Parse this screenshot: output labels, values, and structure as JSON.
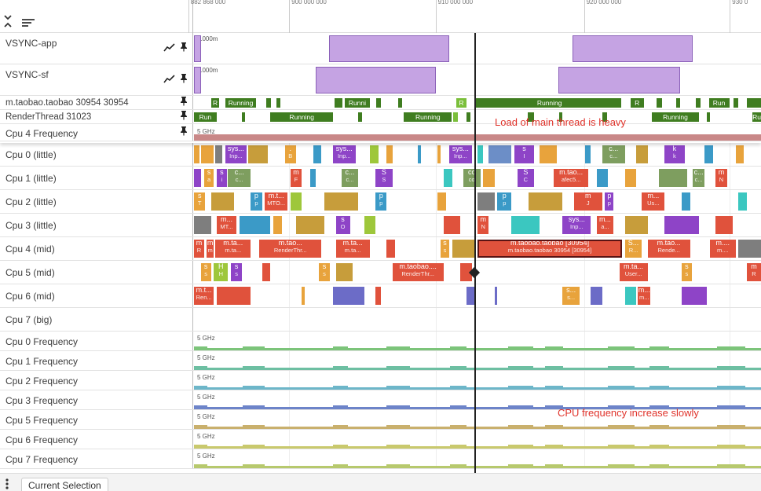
{
  "axis": {
    "ticks": [
      {
        "label": "882 868 000",
        "frac": -0.01
      },
      {
        "label": "900 000 000",
        "frac": 0.168
      },
      {
        "label": "910 000 000",
        "frac": 0.426
      },
      {
        "label": "920 000 000",
        "frac": 0.688
      },
      {
        "label": "930 0",
        "frac": 0.945
      }
    ]
  },
  "header": {
    "collapse_icon": "collapse-all-icon",
    "sort_icon": "list-icon"
  },
  "pinned_rows": [
    {
      "id": "vsync-app",
      "name": "VSYNC-app",
      "kind": "vsync",
      "scale_label": "1000m",
      "has_chart_icon": true,
      "pulses": [
        [
          0,
          0.012
        ],
        [
          0.238,
          0.45
        ],
        [
          0.668,
          0.88
        ]
      ]
    },
    {
      "id": "vsync-sf",
      "name": "VSYNC-sf",
      "kind": "vsync",
      "scale_label": "1000m",
      "has_chart_icon": true,
      "pulses": [
        [
          0,
          0.012
        ],
        [
          0.214,
          0.427
        ],
        [
          0.643,
          0.857
        ]
      ]
    },
    {
      "id": "main-thread",
      "name": "m.taobao.taobao 30954 30954",
      "kind": "thread",
      "slices": [
        {
          "s": 0.03,
          "e": 0.045,
          "t": "R",
          "c": "#3f7d20"
        },
        {
          "s": 0.055,
          "e": 0.11,
          "t": "Running",
          "c": "#3f7d20"
        },
        {
          "s": 0.127,
          "e": 0.136,
          "t": "",
          "c": "#3f7d20"
        },
        {
          "s": 0.145,
          "e": 0.152,
          "t": "",
          "c": "#3f7d20"
        },
        {
          "s": 0.248,
          "e": 0.262,
          "t": "",
          "c": "#3f7d20"
        },
        {
          "s": 0.266,
          "e": 0.31,
          "t": "Runni",
          "c": "#3f7d20"
        },
        {
          "s": 0.322,
          "e": 0.33,
          "t": "",
          "c": "#3f7d20"
        },
        {
          "s": 0.36,
          "e": 0.367,
          "t": "",
          "c": "#3f7d20"
        },
        {
          "s": 0.463,
          "e": 0.48,
          "t": "R",
          "c": "#7bbf3b"
        },
        {
          "s": 0.497,
          "e": 0.503,
          "t": "",
          "c": "#3f7d20"
        },
        {
          "s": 0.5,
          "e": 0.754,
          "t": "Running",
          "c": "#3f7d20"
        },
        {
          "s": 0.77,
          "e": 0.793,
          "t": "R",
          "c": "#3f7d20"
        },
        {
          "s": 0.816,
          "e": 0.825,
          "t": "",
          "c": "#3f7d20"
        },
        {
          "s": 0.85,
          "e": 0.857,
          "t": "",
          "c": "#3f7d20"
        },
        {
          "s": 0.885,
          "e": 0.893,
          "t": "",
          "c": "#3f7d20"
        },
        {
          "s": 0.908,
          "e": 0.944,
          "t": "Run",
          "c": "#3f7d20"
        },
        {
          "s": 0.952,
          "e": 0.96,
          "t": "",
          "c": "#3f7d20"
        },
        {
          "s": 0.975,
          "e": 1.0,
          "t": "",
          "c": "#3f7d20"
        }
      ]
    },
    {
      "id": "render-thread",
      "name": "RenderThread 31023",
      "kind": "thread",
      "slices": [
        {
          "s": 0.0,
          "e": 0.04,
          "t": "Run",
          "c": "#3f7d20"
        },
        {
          "s": 0.085,
          "e": 0.09,
          "t": "",
          "c": "#3f7d20"
        },
        {
          "s": 0.135,
          "e": 0.245,
          "t": "Running",
          "c": "#3f7d20"
        },
        {
          "s": 0.29,
          "e": 0.296,
          "t": "",
          "c": "#3f7d20"
        },
        {
          "s": 0.37,
          "e": 0.455,
          "t": "Running",
          "c": "#3f7d20"
        },
        {
          "s": 0.457,
          "e": 0.465,
          "t": "",
          "c": "#7bbf3b"
        },
        {
          "s": 0.48,
          "e": 0.488,
          "t": "",
          "c": "#3f7d20"
        },
        {
          "s": 0.588,
          "e": 0.6,
          "t": "",
          "c": "#3f7d20"
        },
        {
          "s": 0.644,
          "e": 0.65,
          "t": "",
          "c": "#3f7d20"
        },
        {
          "s": 0.72,
          "e": 0.728,
          "t": "",
          "c": "#3f7d20"
        },
        {
          "s": 0.808,
          "e": 0.89,
          "t": "Running",
          "c": "#3f7d20"
        },
        {
          "s": 0.905,
          "e": 0.91,
          "t": "",
          "c": "#3f7d20"
        },
        {
          "s": 0.985,
          "e": 1.0,
          "t": "Ru",
          "c": "#3f7d20"
        }
      ]
    },
    {
      "id": "cpu4-freq",
      "name": "Cpu 4 Frequency",
      "kind": "freq",
      "scale_label": "5 GHz",
      "color": "#c98888",
      "level": 0.18
    }
  ],
  "cpu_rows": [
    {
      "id": "cpu0",
      "name": "Cpu 0 (little)",
      "slices": [
        {
          "s": 0.0,
          "e": 0.01,
          "c": "#e8a33c"
        },
        {
          "s": 0.012,
          "e": 0.035,
          "c": "#e8a33c"
        },
        {
          "s": 0.038,
          "e": 0.05,
          "c": "#7e7e7e"
        },
        {
          "s": 0.055,
          "e": 0.093,
          "c": "#8e44c7",
          "t": "sys...",
          "t2": "Inp..."
        },
        {
          "s": 0.095,
          "e": 0.13,
          "c": "#c79d3b"
        },
        {
          "s": 0.16,
          "e": 0.18,
          "c": "#e8a33c",
          "t": ".",
          "t2": "B"
        },
        {
          "s": 0.21,
          "e": 0.225,
          "c": "#3b9ac7"
        },
        {
          "s": 0.245,
          "e": 0.285,
          "c": "#8e44c7",
          "t": "sys...",
          "t2": "Inp..."
        },
        {
          "s": 0.31,
          "e": 0.325,
          "c": "#9ec73b"
        },
        {
          "s": 0.34,
          "e": 0.35,
          "c": "#e8a33c"
        },
        {
          "s": 0.395,
          "e": 0.4,
          "c": "#3b9ac7"
        },
        {
          "s": 0.43,
          "e": 0.435,
          "c": "#e8a33c"
        },
        {
          "s": 0.45,
          "e": 0.49,
          "c": "#8e44c7",
          "t": "sys...",
          "t2": "Inp..."
        },
        {
          "s": 0.5,
          "e": 0.51,
          "c": "#3bc7c0"
        },
        {
          "s": 0.52,
          "e": 0.56,
          "c": "#6c8ec7"
        },
        {
          "s": 0.565,
          "e": 0.6,
          "c": "#8e44c7",
          "t": "s",
          "t2": "I"
        },
        {
          "s": 0.61,
          "e": 0.64,
          "c": "#e8a33c"
        },
        {
          "s": 0.69,
          "e": 0.7,
          "c": "#3b9ac7"
        },
        {
          "s": 0.72,
          "e": 0.76,
          "c": "#7e9e5f",
          "t": "c...",
          "t2": "c..."
        },
        {
          "s": 0.78,
          "e": 0.8,
          "c": "#c79d3b"
        },
        {
          "s": 0.83,
          "e": 0.865,
          "c": "#8e44c7",
          "t": "k",
          "t2": "k"
        },
        {
          "s": 0.9,
          "e": 0.915,
          "c": "#3b9ac7"
        },
        {
          "s": 0.955,
          "e": 0.97,
          "c": "#e8a33c"
        }
      ]
    },
    {
      "id": "cpu1",
      "name": "Cpu 1 (little)",
      "slices": [
        {
          "s": 0.0,
          "e": 0.012,
          "c": "#8e44c7"
        },
        {
          "s": 0.018,
          "e": 0.035,
          "c": "#e8a33c",
          "t": "s",
          "t2": "a"
        },
        {
          "s": 0.04,
          "e": 0.058,
          "c": "#8e44c7",
          "t": "s",
          "t2": "i"
        },
        {
          "s": 0.06,
          "e": 0.1,
          "c": "#7e9e5f",
          "t": "c...",
          "t2": "c..."
        },
        {
          "s": 0.17,
          "e": 0.19,
          "c": "#e0523c",
          "t": "m",
          "t2": "F"
        },
        {
          "s": 0.205,
          "e": 0.215,
          "c": "#3b9ac7"
        },
        {
          "s": 0.26,
          "e": 0.29,
          "c": "#7e9e5f",
          "t": "c...",
          "t2": "c..."
        },
        {
          "s": 0.32,
          "e": 0.35,
          "c": "#8e44c7",
          "t": "S",
          "t2": "S"
        },
        {
          "s": 0.44,
          "e": 0.455,
          "c": "#3bc7c0"
        },
        {
          "s": 0.475,
          "e": 0.505,
          "c": "#7e9e5f",
          "t": "co",
          "t2": "co"
        },
        {
          "s": 0.51,
          "e": 0.53,
          "c": "#e8a33c"
        },
        {
          "s": 0.57,
          "e": 0.6,
          "c": "#8e44c7",
          "t": "S",
          "t2": "C"
        },
        {
          "s": 0.635,
          "e": 0.695,
          "c": "#e0523c",
          "t": "m.tao...",
          "t2": "afec5..."
        },
        {
          "s": 0.71,
          "e": 0.73,
          "c": "#3b9ac7"
        },
        {
          "s": 0.76,
          "e": 0.78,
          "c": "#e8a33c"
        },
        {
          "s": 0.82,
          "e": 0.87,
          "c": "#7e9e5f"
        },
        {
          "s": 0.88,
          "e": 0.9,
          "c": "#7e9e5f",
          "t": "c...",
          "t2": "c..."
        },
        {
          "s": 0.92,
          "e": 0.94,
          "c": "#e0523c",
          "t": "m",
          "t2": "N"
        }
      ]
    },
    {
      "id": "cpu2",
      "name": "Cpu 2 (little)",
      "slices": [
        {
          "s": 0.0,
          "e": 0.02,
          "c": "#e8a33c",
          "t": "s",
          "t2": "T"
        },
        {
          "s": 0.03,
          "e": 0.07,
          "c": "#c79d3b"
        },
        {
          "s": 0.1,
          "e": 0.12,
          "c": "#3b9ac7",
          "t": "p",
          "t2": "p"
        },
        {
          "s": 0.125,
          "e": 0.165,
          "c": "#e0523c",
          "t": "m.t...",
          "t2": "MTO..."
        },
        {
          "s": 0.17,
          "e": 0.19,
          "c": "#9ec73b"
        },
        {
          "s": 0.23,
          "e": 0.29,
          "c": "#c79d3b"
        },
        {
          "s": 0.32,
          "e": 0.34,
          "c": "#3b9ac7",
          "t": "p",
          "t2": "p"
        },
        {
          "s": 0.43,
          "e": 0.445,
          "c": "#e8a33c"
        },
        {
          "s": 0.5,
          "e": 0.53,
          "c": "#7e7e7e"
        },
        {
          "s": 0.535,
          "e": 0.56,
          "c": "#3b9ac7",
          "t": "p",
          "t2": "p"
        },
        {
          "s": 0.59,
          "e": 0.65,
          "c": "#c79d3b"
        },
        {
          "s": 0.67,
          "e": 0.72,
          "c": "#e0523c",
          "t": "m",
          "t2": "J"
        },
        {
          "s": 0.725,
          "e": 0.74,
          "c": "#8e44c7",
          "t": "p",
          "t2": "p"
        },
        {
          "s": 0.79,
          "e": 0.83,
          "c": "#e0523c",
          "t": "m...",
          "t2": "Us..."
        },
        {
          "s": 0.86,
          "e": 0.875,
          "c": "#3b9ac7"
        },
        {
          "s": 0.96,
          "e": 0.975,
          "c": "#3bc7c0"
        }
      ]
    },
    {
      "id": "cpu3",
      "name": "Cpu 3 (little)",
      "slices": [
        {
          "s": 0.0,
          "e": 0.03,
          "c": "#7e7e7e"
        },
        {
          "s": 0.04,
          "e": 0.075,
          "c": "#e0523c",
          "t": "m...",
          "t2": "MT..."
        },
        {
          "s": 0.08,
          "e": 0.135,
          "c": "#3b9ac7"
        },
        {
          "s": 0.14,
          "e": 0.155,
          "c": "#e8a33c"
        },
        {
          "s": 0.18,
          "e": 0.23,
          "c": "#c79d3b"
        },
        {
          "s": 0.25,
          "e": 0.275,
          "c": "#8e44c7",
          "t": "s",
          "t2": "O"
        },
        {
          "s": 0.3,
          "e": 0.32,
          "c": "#9ec73b"
        },
        {
          "s": 0.44,
          "e": 0.47,
          "c": "#e0523c"
        },
        {
          "s": 0.5,
          "e": 0.52,
          "c": "#e0523c",
          "t": "m",
          "t2": "N"
        },
        {
          "s": 0.56,
          "e": 0.61,
          "c": "#3bc7c0"
        },
        {
          "s": 0.65,
          "e": 0.7,
          "c": "#8e44c7",
          "t": "sys...",
          "t2": "Inp..."
        },
        {
          "s": 0.71,
          "e": 0.74,
          "c": "#e0523c",
          "t": "m...",
          "t2": "a..."
        },
        {
          "s": 0.76,
          "e": 0.8,
          "c": "#c79d3b"
        },
        {
          "s": 0.83,
          "e": 0.89,
          "c": "#8e44c7"
        },
        {
          "s": 0.92,
          "e": 0.95,
          "c": "#e0523c"
        }
      ]
    },
    {
      "id": "cpu4",
      "name": "Cpu 4 (mid)",
      "slices": [
        {
          "s": 0.0,
          "e": 0.018,
          "c": "#e0523c",
          "t": "m",
          "t2": "R"
        },
        {
          "s": 0.022,
          "e": 0.035,
          "c": "#e0523c",
          "t": "m",
          "t2": "m"
        },
        {
          "s": 0.038,
          "e": 0.1,
          "c": "#e0523c",
          "t": "m.ta...",
          "t2": "m.ta..."
        },
        {
          "s": 0.115,
          "e": 0.225,
          "c": "#e0523c",
          "t": "m.tao...",
          "t2": "RenderThr..."
        },
        {
          "s": 0.25,
          "e": 0.31,
          "c": "#e0523c",
          "t": "m.ta...",
          "t2": "m.ta..."
        },
        {
          "s": 0.34,
          "e": 0.355,
          "c": "#e0523c"
        },
        {
          "s": 0.435,
          "e": 0.45,
          "c": "#e8a33c",
          "t": "s",
          "t2": "s"
        },
        {
          "s": 0.455,
          "e": 0.497,
          "c": "#c79d3b"
        },
        {
          "s": 0.5,
          "e": 0.755,
          "c": "#e0523c",
          "t": "m.taobao.taobao [30954]",
          "t2": "m.taobao.taobao 30954 [30954]",
          "sel": true
        },
        {
          "s": 0.76,
          "e": 0.79,
          "c": "#e8a33c",
          "t": "S...",
          "t2": "R..."
        },
        {
          "s": 0.8,
          "e": 0.875,
          "c": "#e0523c",
          "t": "m.tao...",
          "t2": "Rende..."
        },
        {
          "s": 0.91,
          "e": 0.955,
          "c": "#e0523c",
          "t": "m....",
          "t2": "m...."
        },
        {
          "s": 0.96,
          "e": 1.0,
          "c": "#7e7e7e"
        }
      ]
    },
    {
      "id": "cpu5",
      "name": "Cpu 5 (mid)",
      "slices": [
        {
          "s": 0.012,
          "e": 0.03,
          "c": "#e8a33c",
          "t": "s",
          "t2": "s"
        },
        {
          "s": 0.035,
          "e": 0.06,
          "c": "#9ec73b",
          "t": "H",
          "t2": "H"
        },
        {
          "s": 0.065,
          "e": 0.085,
          "c": "#8e44c7",
          "t": "s",
          "t2": "s"
        },
        {
          "s": 0.12,
          "e": 0.135,
          "c": "#e0523c"
        },
        {
          "s": 0.22,
          "e": 0.24,
          "c": "#e8a33c",
          "t": "s",
          "t2": "s"
        },
        {
          "s": 0.25,
          "e": 0.28,
          "c": "#c79d3b"
        },
        {
          "s": 0.35,
          "e": 0.44,
          "c": "#e0523c",
          "t": "m.taobao....",
          "t2": "RenderThr..."
        },
        {
          "s": 0.47,
          "e": 0.49,
          "c": "#e0523c"
        },
        {
          "s": 0.75,
          "e": 0.8,
          "c": "#e0523c",
          "t": "m.ta...",
          "t2": "User..."
        },
        {
          "s": 0.86,
          "e": 0.878,
          "c": "#e8a33c",
          "t": "s",
          "t2": "s"
        },
        {
          "s": 0.975,
          "e": 1.0,
          "c": "#e0523c",
          "t": "m",
          "t2": "R"
        }
      ]
    },
    {
      "id": "cpu6",
      "name": "Cpu 6 (mid)",
      "slices": [
        {
          "s": 0.0,
          "e": 0.035,
          "c": "#e0523c",
          "t": "m.t...",
          "t2": "Ren..."
        },
        {
          "s": 0.04,
          "e": 0.1,
          "c": "#e0523c"
        },
        {
          "s": 0.19,
          "e": 0.195,
          "c": "#e8a33c"
        },
        {
          "s": 0.245,
          "e": 0.3,
          "c": "#6c6cc7"
        },
        {
          "s": 0.32,
          "e": 0.33,
          "c": "#e0523c"
        },
        {
          "s": 0.48,
          "e": 0.497,
          "c": "#6c6cc7"
        },
        {
          "s": 0.53,
          "e": 0.535,
          "c": "#6c6cc7"
        },
        {
          "s": 0.65,
          "e": 0.68,
          "c": "#e8a33c",
          "t": "s...",
          "t2": "s..."
        },
        {
          "s": 0.7,
          "e": 0.72,
          "c": "#6c6cc7"
        },
        {
          "s": 0.76,
          "e": 0.78,
          "c": "#3bc7c0"
        },
        {
          "s": 0.783,
          "e": 0.805,
          "c": "#e0523c",
          "t": "m...",
          "t2": "m..."
        },
        {
          "s": 0.86,
          "e": 0.905,
          "c": "#8e44c7"
        }
      ]
    },
    {
      "id": "cpu7",
      "name": "Cpu 7 (big)",
      "slices": []
    }
  ],
  "freq_rows": [
    {
      "id": "cpu0-freq",
      "name": "Cpu 0 Frequency",
      "scale_label": "5 GHz",
      "color": "#7cc47a"
    },
    {
      "id": "cpu1-freq",
      "name": "Cpu 1 Frequency",
      "scale_label": "5 GHz",
      "color": "#6dbfa2"
    },
    {
      "id": "cpu2-freq",
      "name": "Cpu 2 Frequency",
      "scale_label": "5 GHz",
      "color": "#6db6c9"
    },
    {
      "id": "cpu3-freq",
      "name": "Cpu 3 Frequency",
      "scale_label": "5 GHz",
      "color": "#6d84c9"
    },
    {
      "id": "cpu5-freq",
      "name": "Cpu 5 Frequency",
      "scale_label": "5 GHz",
      "color": "#c9b06d"
    },
    {
      "id": "cpu6-freq",
      "name": "Cpu 6 Frequency",
      "scale_label": "5 GHz",
      "color": "#c9c96d"
    },
    {
      "id": "cpu7-freq",
      "name": "Cpu 7 Frequency",
      "scale_label": "5 GHz",
      "color": "#b7c96d"
    }
  ],
  "annotations": {
    "main_thread": "Load of main thread is heavy",
    "cpu_freq": "CPU frequency increase slowly"
  },
  "footer": {
    "tab_label": "Current Selection",
    "menu_icon": "more-vertical-icon"
  }
}
